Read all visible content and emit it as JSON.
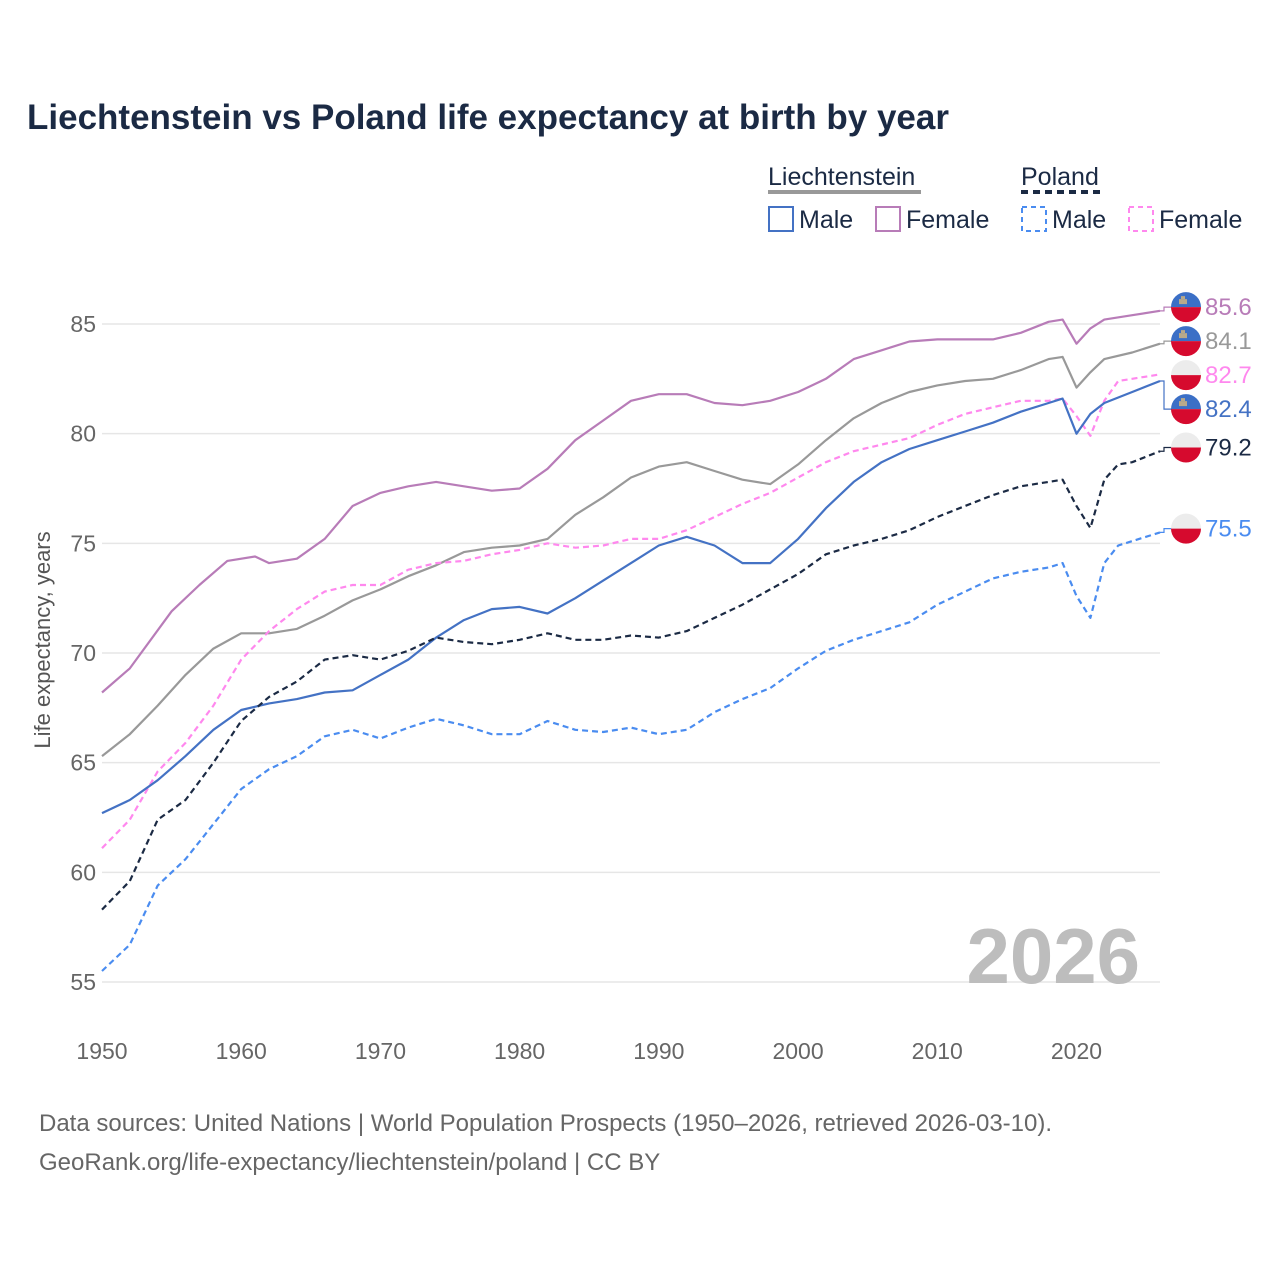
{
  "chart_data": {
    "type": "line",
    "title": "Liechtenstein vs Poland life expectancy at birth by year",
    "xlabel": "",
    "ylabel": "Life expectancy, years",
    "xlim": [
      1950,
      2026
    ],
    "ylim": [
      54,
      87
    ],
    "x_ticks": [
      "1950",
      "1960",
      "1970",
      "1980",
      "1990",
      "2000",
      "2010",
      "2020"
    ],
    "y_ticks": [
      "55",
      "60",
      "65",
      "70",
      "75",
      "80",
      "85"
    ],
    "grid": true,
    "year_watermark": "2026",
    "legend": {
      "placement": "top-right",
      "groups": [
        {
          "label": "Liechtenstein",
          "line_color": "#999999",
          "dashed": false,
          "items": [
            "Male",
            "Female"
          ]
        },
        {
          "label": "Poland",
          "line_color": "#1b2a44",
          "dashed": true,
          "items": [
            "Male",
            "Female"
          ]
        }
      ]
    },
    "series": [
      {
        "name": "Liechtenstein Female",
        "country": "Liechtenstein",
        "color": "#b87cb8",
        "dashed": false,
        "end_label": "85.6",
        "x": [
          1950,
          1952,
          1955,
          1957,
          1959,
          1961,
          1962,
          1964,
          1966,
          1968,
          1970,
          1972,
          1974,
          1976,
          1978,
          1980,
          1982,
          1984,
          1986,
          1988,
          1990,
          1992,
          1994,
          1996,
          1998,
          2000,
          2002,
          2004,
          2006,
          2008,
          2010,
          2012,
          2014,
          2016,
          2018,
          2019,
          2020,
          2021,
          2022,
          2024,
          2026
        ],
        "y": [
          68.2,
          69.3,
          71.9,
          73.1,
          74.2,
          74.4,
          74.1,
          74.3,
          75.2,
          76.7,
          77.3,
          77.6,
          77.8,
          77.6,
          77.4,
          77.5,
          78.4,
          79.7,
          80.6,
          81.5,
          81.8,
          81.8,
          81.4,
          81.3,
          81.5,
          81.9,
          82.5,
          83.4,
          83.8,
          84.2,
          84.3,
          84.3,
          84.3,
          84.6,
          85.1,
          85.2,
          84.1,
          84.8,
          85.2,
          85.4,
          85.6
        ]
      },
      {
        "name": "Liechtenstein Total",
        "country": "Liechtenstein",
        "color": "#999999",
        "dashed": false,
        "end_label": "84.1",
        "x": [
          1950,
          1952,
          1954,
          1956,
          1958,
          1960,
          1962,
          1964,
          1966,
          1968,
          1970,
          1972,
          1974,
          1976,
          1978,
          1980,
          1982,
          1984,
          1986,
          1988,
          1990,
          1992,
          1994,
          1996,
          1998,
          2000,
          2002,
          2004,
          2006,
          2008,
          2010,
          2012,
          2014,
          2016,
          2018,
          2019,
          2020,
          2021,
          2022,
          2024,
          2026
        ],
        "y": [
          65.3,
          66.3,
          67.6,
          69.0,
          70.2,
          70.9,
          70.9,
          71.1,
          71.7,
          72.4,
          72.9,
          73.5,
          74.0,
          74.6,
          74.8,
          74.9,
          75.2,
          76.3,
          77.1,
          78.0,
          78.5,
          78.7,
          78.3,
          77.9,
          77.7,
          78.6,
          79.7,
          80.7,
          81.4,
          81.9,
          82.2,
          82.4,
          82.5,
          82.9,
          83.4,
          83.5,
          82.1,
          82.8,
          83.4,
          83.7,
          84.1
        ]
      },
      {
        "name": "Poland Female",
        "country": "Poland",
        "color": "#ff88ee",
        "dashed": true,
        "end_label": "82.7",
        "x": [
          1950,
          1952,
          1954,
          1956,
          1958,
          1960,
          1962,
          1964,
          1966,
          1968,
          1970,
          1972,
          1974,
          1976,
          1978,
          1980,
          1982,
          1984,
          1986,
          1988,
          1990,
          1992,
          1994,
          1996,
          1998,
          2000,
          2002,
          2004,
          2006,
          2008,
          2010,
          2012,
          2014,
          2016,
          2018,
          2019,
          2020,
          2021,
          2022,
          2023,
          2024,
          2026
        ],
        "y": [
          61.1,
          62.4,
          64.6,
          65.9,
          67.6,
          69.7,
          71.0,
          72.0,
          72.8,
          73.1,
          73.1,
          73.8,
          74.1,
          74.2,
          74.5,
          74.7,
          75.0,
          74.8,
          74.9,
          75.2,
          75.2,
          75.6,
          76.2,
          76.8,
          77.3,
          78.0,
          78.7,
          79.2,
          79.5,
          79.8,
          80.4,
          80.9,
          81.2,
          81.5,
          81.5,
          81.6,
          80.8,
          79.9,
          81.5,
          82.4,
          82.5,
          82.7
        ]
      },
      {
        "name": "Liechtenstein Male",
        "country": "Liechtenstein",
        "color": "#4472c4",
        "dashed": false,
        "end_label": "82.4",
        "x": [
          1950,
          1952,
          1954,
          1956,
          1958,
          1960,
          1962,
          1964,
          1966,
          1968,
          1970,
          1972,
          1974,
          1976,
          1978,
          1980,
          1982,
          1984,
          1986,
          1988,
          1990,
          1992,
          1994,
          1996,
          1998,
          2000,
          2002,
          2004,
          2006,
          2008,
          2010,
          2012,
          2014,
          2016,
          2018,
          2019,
          2020,
          2021,
          2022,
          2024,
          2026
        ],
        "y": [
          62.7,
          63.3,
          64.2,
          65.3,
          66.5,
          67.4,
          67.7,
          67.9,
          68.2,
          68.3,
          69.0,
          69.7,
          70.7,
          71.5,
          72.0,
          72.1,
          71.8,
          72.5,
          73.3,
          74.1,
          74.9,
          75.3,
          74.9,
          74.1,
          74.1,
          75.2,
          76.6,
          77.8,
          78.7,
          79.3,
          79.7,
          80.1,
          80.5,
          81.0,
          81.4,
          81.6,
          80.0,
          80.9,
          81.4,
          81.9,
          82.4
        ]
      },
      {
        "name": "Poland Total",
        "country": "Poland",
        "color": "#1b2a44",
        "dashed": true,
        "end_label": "79.2",
        "x": [
          1950,
          1952,
          1954,
          1956,
          1958,
          1960,
          1962,
          1964,
          1966,
          1968,
          1970,
          1972,
          1974,
          1976,
          1978,
          1980,
          1982,
          1984,
          1986,
          1988,
          1990,
          1992,
          1994,
          1996,
          1998,
          2000,
          2002,
          2004,
          2006,
          2008,
          2010,
          2012,
          2014,
          2016,
          2018,
          2019,
          2020,
          2021,
          2022,
          2023,
          2024,
          2026
        ],
        "y": [
          58.3,
          59.6,
          62.4,
          63.3,
          65.0,
          66.9,
          68.0,
          68.7,
          69.7,
          69.9,
          69.7,
          70.1,
          70.7,
          70.5,
          70.4,
          70.6,
          70.9,
          70.6,
          70.6,
          70.8,
          70.7,
          71.0,
          71.6,
          72.2,
          72.9,
          73.6,
          74.5,
          74.9,
          75.2,
          75.6,
          76.2,
          76.7,
          77.2,
          77.6,
          77.8,
          77.9,
          76.7,
          75.7,
          77.9,
          78.6,
          78.7,
          79.2
        ]
      },
      {
        "name": "Poland Male",
        "country": "Poland",
        "color": "#4a8cf0",
        "dashed": true,
        "end_label": "75.5",
        "x": [
          1950,
          1952,
          1954,
          1956,
          1958,
          1960,
          1962,
          1964,
          1966,
          1968,
          1970,
          1972,
          1974,
          1976,
          1978,
          1980,
          1982,
          1984,
          1986,
          1988,
          1990,
          1992,
          1994,
          1996,
          1998,
          2000,
          2002,
          2004,
          2006,
          2008,
          2010,
          2012,
          2014,
          2016,
          2018,
          2019,
          2020,
          2021,
          2022,
          2023,
          2024,
          2026
        ],
        "y": [
          55.5,
          56.7,
          59.4,
          60.6,
          62.2,
          63.8,
          64.7,
          65.3,
          66.2,
          66.5,
          66.1,
          66.6,
          67.0,
          66.7,
          66.3,
          66.3,
          66.9,
          66.5,
          66.4,
          66.6,
          66.3,
          66.5,
          67.3,
          67.9,
          68.4,
          69.3,
          70.1,
          70.6,
          71.0,
          71.4,
          72.2,
          72.8,
          73.4,
          73.7,
          73.9,
          74.1,
          72.6,
          71.6,
          74.1,
          74.9,
          75.1,
          75.5
        ]
      }
    ],
    "source_lines": [
      "Data sources: United Nations | World Population Prospects (1950–2026, retrieved 2026-03-10).",
      "GeoRank.org/life-expectancy/liechtenstein/poland | CC BY"
    ]
  }
}
